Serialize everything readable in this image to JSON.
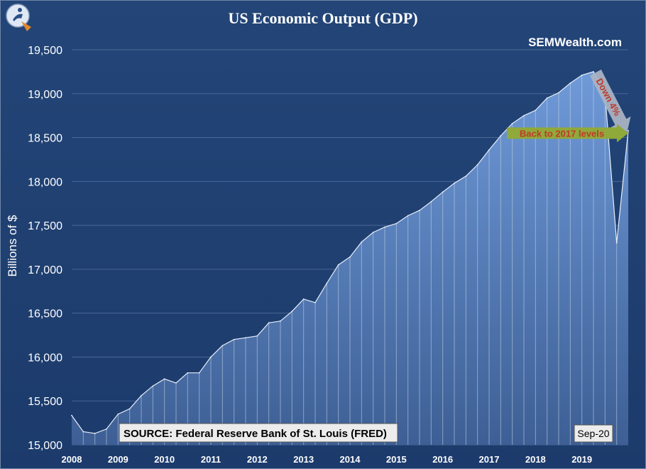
{
  "colors": {
    "background": "#1e3f73",
    "area_top": "#6f9ad8",
    "area_bottom": "#3d5f95",
    "line": "#e8eef8",
    "bar_divider": "#c9d6ea",
    "arrow_down": "#a9b3c3",
    "arrow_green": "#8fa93a",
    "annotation_red": "#c0392b"
  },
  "branding": {
    "logo_icon": "swimmer-logo-icon",
    "watermark": "SEMWealth.com"
  },
  "chart_data": {
    "type": "area",
    "title": "US Economic Output (GDP)",
    "xlabel": "",
    "ylabel": "Billions of $",
    "ylim": [
      15000,
      19500
    ],
    "yticks": [
      15000,
      15500,
      16000,
      16500,
      17000,
      17500,
      18000,
      18500,
      19000,
      19500
    ],
    "ytick_labels": [
      "15,000",
      "15,500",
      "16,000",
      "16,500",
      "17,000",
      "17,500",
      "18,000",
      "18,500",
      "19,000",
      "19,500"
    ],
    "xticks": [
      "2008",
      "2009",
      "2010",
      "2011",
      "2012",
      "2013",
      "2014",
      "2015",
      "2016",
      "2017",
      "2018",
      "2019"
    ],
    "grid": true,
    "series": [
      {
        "values": [
          15335,
          15150,
          15130,
          15180,
          15350,
          15410,
          15560,
          15670,
          15750,
          15705,
          15820,
          15820,
          16000,
          16130,
          16200,
          16220,
          16240,
          16390,
          16410,
          16520,
          16660,
          16620,
          16840,
          17050,
          17140,
          17310,
          17420,
          17480,
          17520,
          17610,
          17670,
          17770,
          17880,
          17980,
          18060,
          18190,
          18360,
          18520,
          18660,
          18750,
          18810,
          18950,
          19010,
          19120,
          19210,
          19250,
          18990,
          17300,
          18580
        ]
      }
    ],
    "annotations": [
      {
        "text": "Down 4%",
        "kind": "arrow-down"
      },
      {
        "text": "Back to 2017 levels",
        "kind": "arrow-right"
      }
    ],
    "source": "SOURCE: Federal Reserve Bank of St. Louis (FRED)",
    "date_stamp": "Sep-20"
  }
}
